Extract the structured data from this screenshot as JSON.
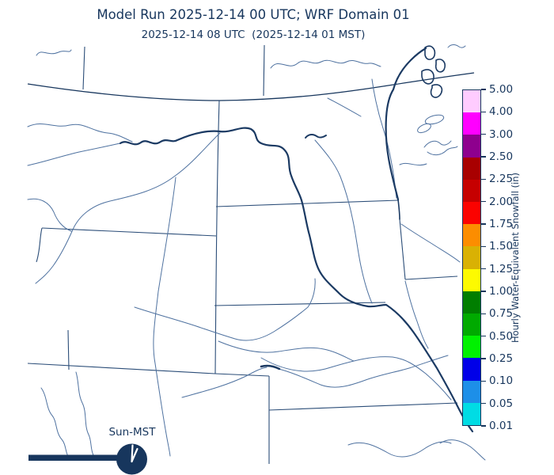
{
  "title": "Model Run 2025-12-14 00 UTC; WRF Domain 01",
  "subtitle": "2025-12-14 08 UTC  (2025-12-14 01 MST)",
  "colorbar": {
    "label": "Hourly Water-Equivalent Snowfall (in)",
    "ticks": [
      "5.00",
      "4.00",
      "3.00",
      "2.50",
      "2.25",
      "2.00",
      "1.75",
      "1.50",
      "1.25",
      "1.00",
      "0.75",
      "0.50",
      "0.25",
      "0.10",
      "0.05",
      "0.01"
    ],
    "bands": [
      {
        "range": "4.00-5.00",
        "color": "#ffccff"
      },
      {
        "range": "3.00-4.00",
        "color": "#ff00ff"
      },
      {
        "range": "2.50-3.00",
        "color": "#8e008e"
      },
      {
        "range": "2.25-2.50",
        "color": "#a80000"
      },
      {
        "range": "2.00-2.25",
        "color": "#c60000"
      },
      {
        "range": "1.75-2.00",
        "color": "#fb0200"
      },
      {
        "range": "1.50-1.75",
        "color": "#fc8d00"
      },
      {
        "range": "1.25-1.50",
        "color": "#d9b104"
      },
      {
        "range": "1.00-1.25",
        "color": "#fdfa00"
      },
      {
        "range": "0.75-1.00",
        "color": "#007e00"
      },
      {
        "range": "0.50-0.75",
        "color": "#00aa00"
      },
      {
        "range": "0.25-0.50",
        "color": "#00f100"
      },
      {
        "range": "0.10-0.25",
        "color": "#0000e8"
      },
      {
        "range": "0.05-0.10",
        "color": "#1d8fe8"
      },
      {
        "range": "0.01-0.05",
        "color": "#00dce4"
      }
    ]
  },
  "clock": {
    "label": "Sun-MST",
    "time_shown": "1:00"
  },
  "colors": {
    "navy": "#17365d",
    "border": "#2b4d78",
    "river": "#4f72a0",
    "boldwater": "#1b3a63"
  }
}
